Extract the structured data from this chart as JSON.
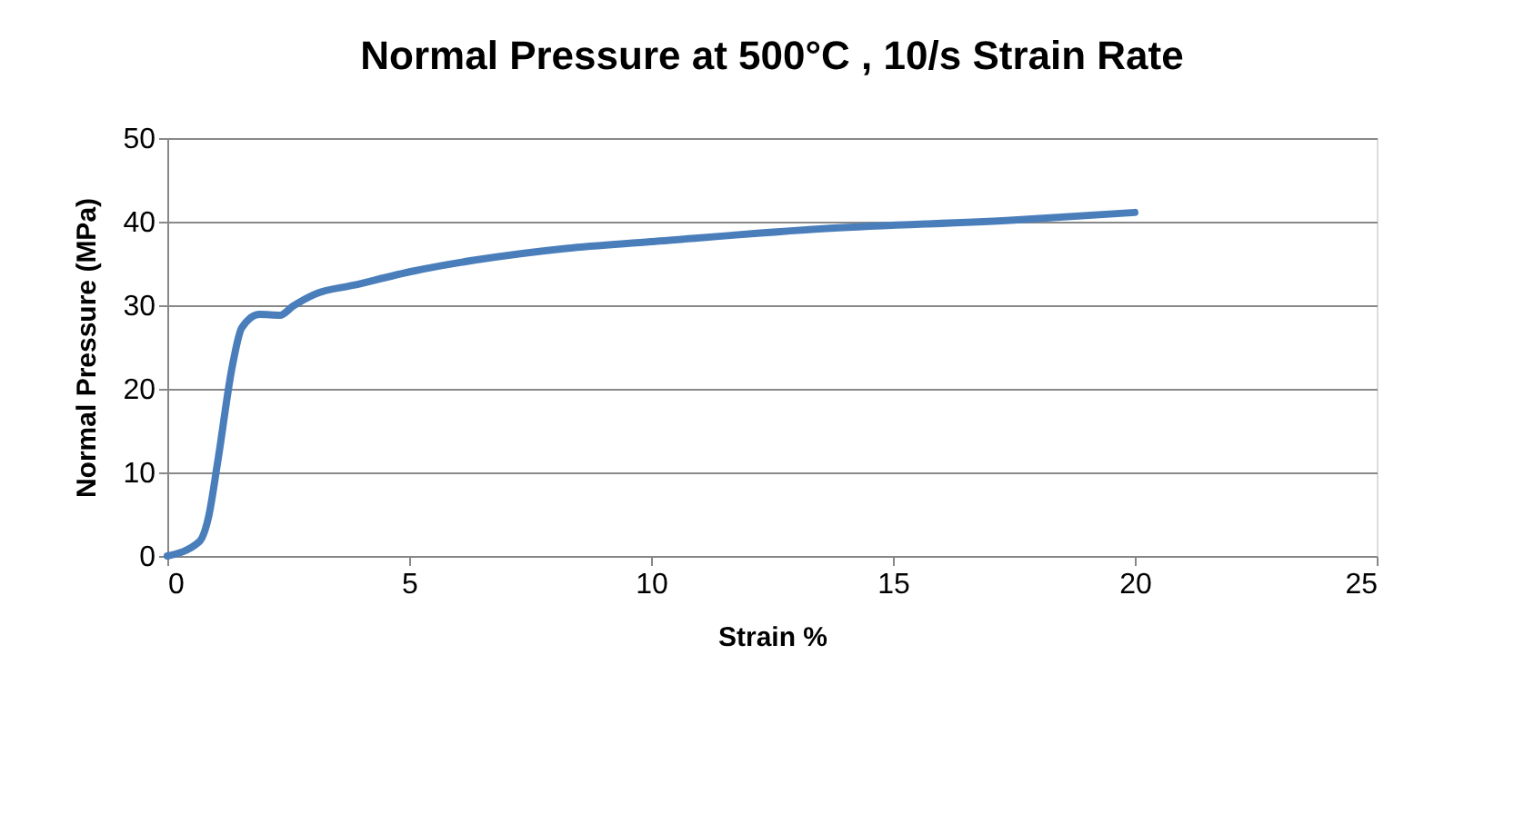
{
  "chart_data": {
    "type": "line",
    "title": "Normal Pressure at 500°C , 10/s Strain Rate",
    "xlabel": "Strain %",
    "ylabel": "Normal Pressure (MPa)",
    "x": [
      0,
      0.66,
      0.85,
      1.04,
      1.35,
      1.54,
      1.91,
      2.33,
      2.6,
      3.04,
      3.85,
      5.1,
      6.36,
      8.24,
      10,
      13.7,
      17.5,
      20
    ],
    "series": [
      {
        "color": "#4a7ebb",
        "values": [
          0,
          1.7,
          4.6,
          11.2,
          22.9,
          27.3,
          28.9,
          28.8,
          29.9,
          31.3,
          32.4,
          34.1,
          35.4,
          36.8,
          37.6,
          39.2,
          40.2,
          41.1
        ]
      }
    ],
    "xlim": [
      0,
      25
    ],
    "xticks": [
      0,
      5,
      10,
      15,
      20,
      25
    ],
    "ylim": [
      0,
      50
    ],
    "yticks": [
      0,
      10,
      20,
      30,
      40,
      50
    ],
    "grid": "y",
    "marker": "none",
    "line_style": "solid"
  }
}
